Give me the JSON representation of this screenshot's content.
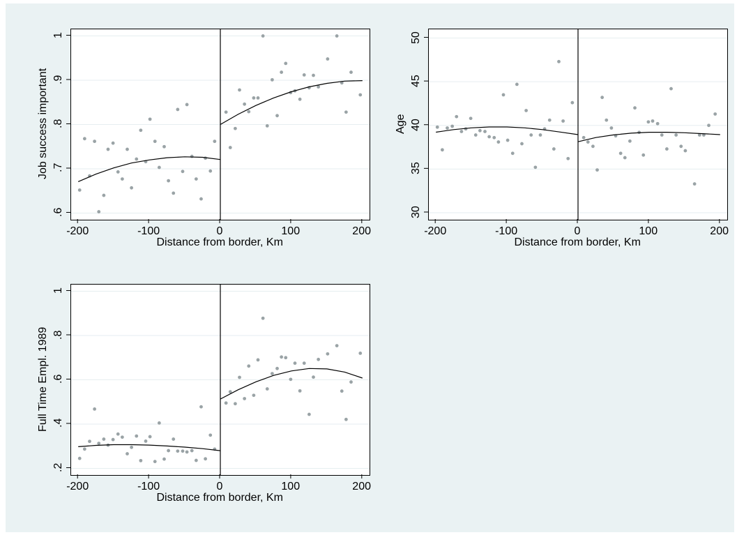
{
  "colors": {
    "figure_bg": "#eaf2f3",
    "plot_bg": "#ffffff",
    "grid": "#e6eef0",
    "points": "#9aa3a6",
    "fit": "#000000"
  },
  "chart_data": [
    {
      "type": "scatter",
      "title": "",
      "xlabel": "Distance from border, Km",
      "ylabel": "Job success important",
      "xlim": [
        -210,
        210
      ],
      "ylim": [
        0.585,
        1.015
      ],
      "xticks": [
        -200,
        -100,
        0,
        100,
        200
      ],
      "xtick_labels": [
        "-200",
        "-100",
        "0",
        "100",
        "200"
      ],
      "yticks": [
        0.6,
        0.7,
        0.8,
        0.9,
        1
      ],
      "ytick_labels": [
        ".6",
        ".7",
        ".8",
        ".9",
        "1"
      ],
      "grid": true,
      "cutoff_x": 0,
      "points": [
        [
          -198,
          0.652
        ],
        [
          -191,
          0.768
        ],
        [
          -184,
          0.684
        ],
        [
          -177,
          0.762
        ],
        [
          -171,
          0.603
        ],
        [
          -164,
          0.64
        ],
        [
          -158,
          0.744
        ],
        [
          -151,
          0.758
        ],
        [
          -144,
          0.693
        ],
        [
          -138,
          0.677
        ],
        [
          -131,
          0.744
        ],
        [
          -125,
          0.657
        ],
        [
          -118,
          0.722
        ],
        [
          -112,
          0.787
        ],
        [
          -105,
          0.716
        ],
        [
          -99,
          0.812
        ],
        [
          -92,
          0.762
        ],
        [
          -86,
          0.703
        ],
        [
          -79,
          0.75
        ],
        [
          -73,
          0.673
        ],
        [
          -66,
          0.645
        ],
        [
          -60,
          0.834
        ],
        [
          -53,
          0.694
        ],
        [
          -47,
          0.845
        ],
        [
          -40,
          0.728
        ],
        [
          -34,
          0.677
        ],
        [
          -27,
          0.632
        ],
        [
          -21,
          0.724
        ],
        [
          -14,
          0.695
        ],
        [
          -8,
          0.762
        ],
        [
          8,
          0.828
        ],
        [
          14,
          0.748
        ],
        [
          21,
          0.791
        ],
        [
          27,
          0.878
        ],
        [
          34,
          0.846
        ],
        [
          40,
          0.829
        ],
        [
          47,
          0.86
        ],
        [
          53,
          0.86
        ],
        [
          60,
          1.0
        ],
        [
          66,
          0.797
        ],
        [
          73,
          0.901
        ],
        [
          80,
          0.82
        ],
        [
          86,
          0.918
        ],
        [
          92,
          0.938
        ],
        [
          99,
          0.872
        ],
        [
          105,
          0.876
        ],
        [
          112,
          0.857
        ],
        [
          118,
          0.912
        ],
        [
          125,
          0.883
        ],
        [
          131,
          0.911
        ],
        [
          138,
          0.885
        ],
        [
          151,
          0.948
        ],
        [
          164,
          1.0
        ],
        [
          171,
          0.894
        ],
        [
          177,
          0.828
        ],
        [
          184,
          0.918
        ],
        [
          197,
          0.867
        ]
      ],
      "fit_left": [
        [
          -200,
          0.671
        ],
        [
          -175,
          0.688
        ],
        [
          -150,
          0.702
        ],
        [
          -125,
          0.713
        ],
        [
          -100,
          0.72
        ],
        [
          -75,
          0.725
        ],
        [
          -50,
          0.727
        ],
        [
          -25,
          0.726
        ],
        [
          0,
          0.721
        ]
      ],
      "fit_right": [
        [
          0,
          0.8
        ],
        [
          25,
          0.823
        ],
        [
          50,
          0.843
        ],
        [
          75,
          0.86
        ],
        [
          100,
          0.874
        ],
        [
          125,
          0.885
        ],
        [
          150,
          0.893
        ],
        [
          175,
          0.898
        ],
        [
          200,
          0.899
        ]
      ]
    },
    {
      "type": "scatter",
      "title": "",
      "xlabel": "Distance from border, Km",
      "ylabel": "Age",
      "xlim": [
        -210,
        210
      ],
      "ylim": [
        29.2,
        51.0
      ],
      "xticks": [
        -200,
        -100,
        0,
        100,
        200
      ],
      "xtick_labels": [
        "-200",
        "-100",
        "0",
        "100",
        "200"
      ],
      "yticks": [
        30,
        35,
        40,
        45,
        50
      ],
      "ytick_labels": [
        "30",
        "35",
        "40",
        "45",
        "50"
      ],
      "grid": true,
      "cutoff_x": 0,
      "points": [
        [
          -198,
          39.8
        ],
        [
          -191,
          37.2
        ],
        [
          -184,
          39.7
        ],
        [
          -177,
          39.9
        ],
        [
          -171,
          41.0
        ],
        [
          -164,
          39.3
        ],
        [
          -158,
          39.6
        ],
        [
          -151,
          40.8
        ],
        [
          -144,
          38.9
        ],
        [
          -138,
          39.4
        ],
        [
          -131,
          39.3
        ],
        [
          -125,
          38.7
        ],
        [
          -118,
          38.6
        ],
        [
          -112,
          38.1
        ],
        [
          -105,
          43.5
        ],
        [
          -99,
          38.3
        ],
        [
          -92,
          36.8
        ],
        [
          -86,
          44.7
        ],
        [
          -79,
          37.9
        ],
        [
          -73,
          41.7
        ],
        [
          -66,
          38.9
        ],
        [
          -60,
          35.2
        ],
        [
          -53,
          38.9
        ],
        [
          -47,
          39.6
        ],
        [
          -40,
          40.6
        ],
        [
          -34,
          37.3
        ],
        [
          -27,
          47.3
        ],
        [
          -21,
          40.5
        ],
        [
          -14,
          36.2
        ],
        [
          -8,
          42.6
        ],
        [
          8,
          38.6
        ],
        [
          14,
          38.1
        ],
        [
          21,
          37.6
        ],
        [
          27,
          34.9
        ],
        [
          34,
          43.2
        ],
        [
          40,
          40.6
        ],
        [
          47,
          39.7
        ],
        [
          53,
          38.8
        ],
        [
          60,
          36.8
        ],
        [
          66,
          36.3
        ],
        [
          73,
          38.2
        ],
        [
          80,
          42.0
        ],
        [
          86,
          39.2
        ],
        [
          92,
          36.6
        ],
        [
          99,
          40.4
        ],
        [
          105,
          40.5
        ],
        [
          112,
          40.2
        ],
        [
          118,
          38.9
        ],
        [
          125,
          37.3
        ],
        [
          131,
          44.2
        ],
        [
          138,
          38.9
        ],
        [
          145,
          37.6
        ],
        [
          151,
          37.1
        ],
        [
          164,
          33.3
        ],
        [
          171,
          38.9
        ],
        [
          177,
          38.9
        ],
        [
          184,
          40.0
        ],
        [
          193,
          41.3
        ]
      ],
      "fit_left": [
        [
          -200,
          39.22
        ],
        [
          -175,
          39.52
        ],
        [
          -150,
          39.72
        ],
        [
          -125,
          39.82
        ],
        [
          -100,
          39.82
        ],
        [
          -75,
          39.72
        ],
        [
          -50,
          39.52
        ],
        [
          -25,
          39.24
        ],
        [
          0,
          38.94
        ]
      ],
      "fit_right": [
        [
          0,
          38.13
        ],
        [
          25,
          38.61
        ],
        [
          50,
          38.91
        ],
        [
          75,
          39.11
        ],
        [
          100,
          39.21
        ],
        [
          125,
          39.21
        ],
        [
          150,
          39.16
        ],
        [
          175,
          39.05
        ],
        [
          200,
          38.94
        ]
      ]
    },
    {
      "type": "scatter",
      "title": "",
      "xlabel": "Distance from border, Km",
      "ylabel": "Full Time Empl. 1989",
      "xlim": [
        -210,
        210
      ],
      "ylim": [
        0.17,
        1.03
      ],
      "xticks": [
        -200,
        -100,
        0,
        100,
        200
      ],
      "xtick_labels": [
        "-200",
        "-100",
        "0",
        "100",
        "200"
      ],
      "yticks": [
        0.2,
        0.4,
        0.6,
        0.8,
        1
      ],
      "ytick_labels": [
        ".2",
        ".4",
        ".6",
        ".8",
        "1"
      ],
      "grid": true,
      "cutoff_x": 0,
      "points": [
        [
          -198,
          0.245
        ],
        [
          -191,
          0.287
        ],
        [
          -184,
          0.322
        ],
        [
          -177,
          0.468
        ],
        [
          -171,
          0.313
        ],
        [
          -164,
          0.332
        ],
        [
          -158,
          0.305
        ],
        [
          -151,
          0.33
        ],
        [
          -144,
          0.355
        ],
        [
          -138,
          0.341
        ],
        [
          -131,
          0.266
        ],
        [
          -125,
          0.295
        ],
        [
          -118,
          0.346
        ],
        [
          -112,
          0.235
        ],
        [
          -105,
          0.323
        ],
        [
          -99,
          0.343
        ],
        [
          -92,
          0.231
        ],
        [
          -86,
          0.405
        ],
        [
          -79,
          0.242
        ],
        [
          -73,
          0.28
        ],
        [
          -66,
          0.332
        ],
        [
          -60,
          0.278
        ],
        [
          -53,
          0.278
        ],
        [
          -47,
          0.274
        ],
        [
          -40,
          0.28
        ],
        [
          -34,
          0.236
        ],
        [
          -27,
          0.478
        ],
        [
          -21,
          0.243
        ],
        [
          -14,
          0.35
        ],
        [
          -8,
          0.287
        ],
        [
          8,
          0.495
        ],
        [
          14,
          0.546
        ],
        [
          21,
          0.492
        ],
        [
          27,
          0.611
        ],
        [
          34,
          0.515
        ],
        [
          40,
          0.662
        ],
        [
          47,
          0.53
        ],
        [
          53,
          0.69
        ],
        [
          60,
          0.878
        ],
        [
          66,
          0.559
        ],
        [
          73,
          0.628
        ],
        [
          80,
          0.651
        ],
        [
          86,
          0.703
        ],
        [
          92,
          0.7
        ],
        [
          99,
          0.602
        ],
        [
          105,
          0.675
        ],
        [
          112,
          0.55
        ],
        [
          118,
          0.675
        ],
        [
          125,
          0.444
        ],
        [
          131,
          0.612
        ],
        [
          138,
          0.692
        ],
        [
          151,
          0.717
        ],
        [
          164,
          0.754
        ],
        [
          171,
          0.549
        ],
        [
          177,
          0.421
        ],
        [
          184,
          0.59
        ],
        [
          197,
          0.72
        ]
      ],
      "fit_left": [
        [
          -200,
          0.298
        ],
        [
          -175,
          0.304
        ],
        [
          -150,
          0.307
        ],
        [
          -125,
          0.307
        ],
        [
          -100,
          0.305
        ],
        [
          -75,
          0.301
        ],
        [
          -50,
          0.296
        ],
        [
          -25,
          0.289
        ],
        [
          0,
          0.28
        ]
      ],
      "fit_right": [
        [
          0,
          0.513
        ],
        [
          25,
          0.555
        ],
        [
          50,
          0.591
        ],
        [
          75,
          0.62
        ],
        [
          100,
          0.64
        ],
        [
          125,
          0.651
        ],
        [
          150,
          0.649
        ],
        [
          175,
          0.635
        ],
        [
          200,
          0.608
        ]
      ]
    }
  ]
}
